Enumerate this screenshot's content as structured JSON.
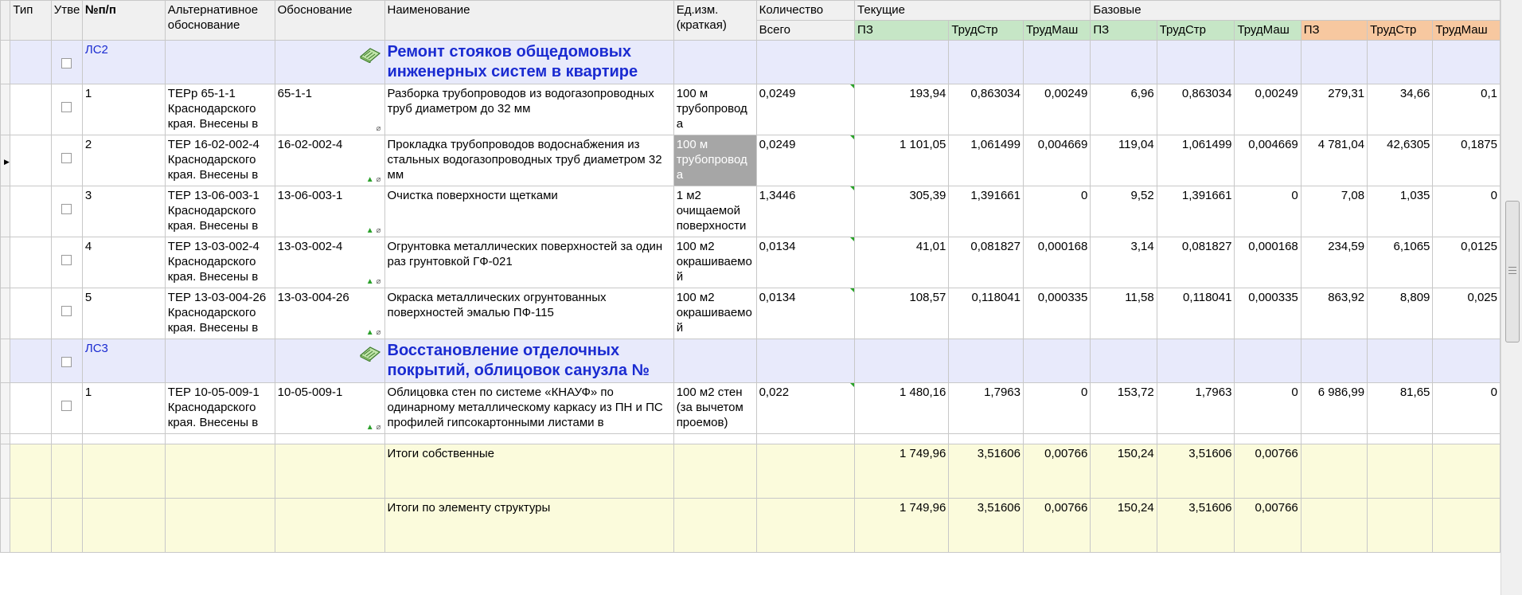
{
  "headers": {
    "tip": "Тип",
    "utv": "Утве",
    "npp": "№п/п",
    "alt": "Альтернативное обоснование",
    "obosn": "Обоснование",
    "naim": "Наименование",
    "ed": "Ед.изм. (краткая)",
    "kol": "Количество",
    "vsego": "Всего",
    "tek": "Текущие",
    "baz": "Базовые",
    "pz": "ПЗ",
    "trudstr": "ТрудСтр",
    "trudmash": "ТрудМаш"
  },
  "sections": [
    {
      "code": "ЛС2",
      "title": "Ремонт стояков общедомовых инженерных систем в квартире",
      "rows": [
        {
          "npp": "1",
          "alt": "ТЕРр 65-1-1 Краснодарского края. Внесены в",
          "obosn": "65-1-1",
          "marks": "clip",
          "name": "Разборка трубопроводов из водогазопроводных труб диаметром до 32 мм",
          "unit": "100 м трубопровода",
          "qty": "0,0249",
          "t_pz": "193,94",
          "t_ts": "0,863034",
          "t_tm": "0,00249",
          "b_pz": "6,96",
          "b_ts": "0,863034",
          "b_tm": "0,00249",
          "o_pz": "279,31",
          "o_ts": "34,66",
          "o_tm": "0,1",
          "current": false,
          "unit_selected": false
        },
        {
          "npp": "2",
          "alt": "ТЕР 16-02-002-4 Краснодарского края. Внесены в",
          "obosn": "16-02-002-4",
          "marks": "updown",
          "name": "Прокладка трубопроводов водоснабжения из стальных водогазопроводных труб диаметром 32 мм",
          "unit": "100 м трубопровода",
          "qty": "0,0249",
          "t_pz": "1 101,05",
          "t_ts": "1,061499",
          "t_tm": "0,004669",
          "b_pz": "119,04",
          "b_ts": "1,061499",
          "b_tm": "0,004669",
          "o_pz": "4 781,04",
          "o_ts": "42,6305",
          "o_tm": "0,1875",
          "current": true,
          "unit_selected": true
        },
        {
          "npp": "3",
          "alt": "ТЕР 13-06-003-1 Краснодарского края. Внесены в",
          "obosn": "13-06-003-1",
          "marks": "updown",
          "name": "Очистка поверхности щетками",
          "unit": "1 м2 очищаемой поверхности",
          "qty": "1,3446",
          "t_pz": "305,39",
          "t_ts": "1,391661",
          "t_tm": "0",
          "b_pz": "9,52",
          "b_ts": "1,391661",
          "b_tm": "0",
          "o_pz": "7,08",
          "o_ts": "1,035",
          "o_tm": "0",
          "current": false,
          "unit_selected": false
        },
        {
          "npp": "4",
          "alt": "ТЕР 13-03-002-4 Краснодарского края. Внесены в",
          "obosn": "13-03-002-4",
          "marks": "updown",
          "name": "Огрунтовка металлических поверхностей за один раз грунтовкой ГФ-021",
          "unit": "100 м2 окрашиваемой поверхности",
          "qty": "0,0134",
          "t_pz": "41,01",
          "t_ts": "0,081827",
          "t_tm": "0,000168",
          "b_pz": "3,14",
          "b_ts": "0,081827",
          "b_tm": "0,000168",
          "o_pz": "234,59",
          "o_ts": "6,1065",
          "o_tm": "0,0125",
          "current": false,
          "unit_selected": false
        },
        {
          "npp": "5",
          "alt": "ТЕР 13-03-004-26 Краснодарского края. Внесены в",
          "obosn": "13-03-004-26",
          "marks": "updown",
          "name": "Окраска металлических огрунтованных поверхностей эмалью ПФ-115",
          "unit": "100 м2 окрашиваемой поверхности",
          "qty": "0,0134",
          "t_pz": "108,57",
          "t_ts": "0,118041",
          "t_tm": "0,000335",
          "b_pz": "11,58",
          "b_ts": "0,118041",
          "b_tm": "0,000335",
          "o_pz": "863,92",
          "o_ts": "8,809",
          "o_tm": "0,025",
          "current": false,
          "unit_selected": false
        }
      ]
    },
    {
      "code": "ЛС3",
      "title": "Восстановление отделочных покрытий, облицовок санузла №",
      "rows": [
        {
          "npp": "1",
          "alt": "ТЕР 10-05-009-1 Краснодарского края. Внесены в",
          "obosn": "10-05-009-1",
          "marks": "updown",
          "name": "Облицовка стен по системе «КНАУФ» по одинарному металлическому каркасу из ПН и ПС профилей гипсокартонными листами в",
          "unit": "100 м2 стен (за вычетом проемов)",
          "qty": "0,022",
          "t_pz": "1 480,16",
          "t_ts": "1,7963",
          "t_tm": "0",
          "b_pz": "153,72",
          "b_ts": "1,7963",
          "b_tm": "0",
          "o_pz": "6 986,99",
          "o_ts": "81,65",
          "o_tm": "0",
          "current": false,
          "unit_selected": false
        }
      ]
    }
  ],
  "totals": [
    {
      "label": "Итоги собственные",
      "t_pz": "1 749,96",
      "t_ts": "3,51606",
      "t_tm": "0,00766",
      "b_pz": "150,24",
      "b_ts": "3,51606",
      "b_tm": "0,00766"
    },
    {
      "label": "Итоги по элементу структуры",
      "t_pz": "1 749,96",
      "t_ts": "3,51606",
      "t_tm": "0,00766",
      "b_pz": "150,24",
      "b_ts": "3,51606",
      "b_tm": "0,00766"
    }
  ],
  "colors": {
    "section_bg": "#e8eafb",
    "section_text": "#1a2bd1",
    "header_green": "#c6e6c6",
    "header_orange": "#f7c8a0",
    "totals_bg": "#fbfbdc"
  }
}
